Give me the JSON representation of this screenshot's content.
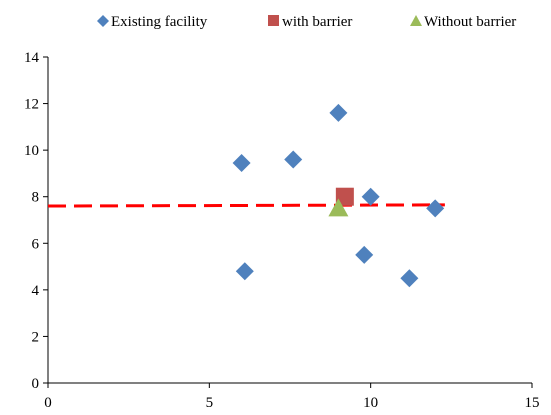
{
  "chart_data": {
    "type": "scatter",
    "title": "",
    "xlabel": "",
    "ylabel": "",
    "xlim": [
      0,
      15
    ],
    "ylim": [
      0,
      14
    ],
    "x_ticks": [
      0,
      5,
      10,
      15
    ],
    "y_ticks": [
      0,
      2,
      4,
      6,
      8,
      10,
      12,
      14
    ],
    "grid": false,
    "legend_position": "top",
    "series": [
      {
        "name": "Existing facility",
        "marker": "diamond",
        "color": "#4F81BD",
        "points": [
          {
            "x": 6.0,
            "y": 9.45
          },
          {
            "x": 7.6,
            "y": 9.6
          },
          {
            "x": 9.0,
            "y": 11.6
          },
          {
            "x": 10.0,
            "y": 8.0
          },
          {
            "x": 12.0,
            "y": 7.5
          },
          {
            "x": 6.1,
            "y": 4.8
          },
          {
            "x": 9.8,
            "y": 5.5
          },
          {
            "x": 11.2,
            "y": 4.5
          }
        ]
      },
      {
        "name": "with barrier",
        "marker": "square",
        "color": "#C0504D",
        "points": [
          {
            "x": 9.2,
            "y": 8.0
          }
        ]
      },
      {
        "name": "Without barrier",
        "marker": "triangle",
        "color": "#9BBB59",
        "points": [
          {
            "x": 9.0,
            "y": 7.5
          }
        ]
      }
    ],
    "reference_line": {
      "style": "dashed",
      "color": "#FF0000",
      "x": [
        0,
        12.3
      ],
      "y": [
        7.6,
        7.65
      ]
    }
  }
}
